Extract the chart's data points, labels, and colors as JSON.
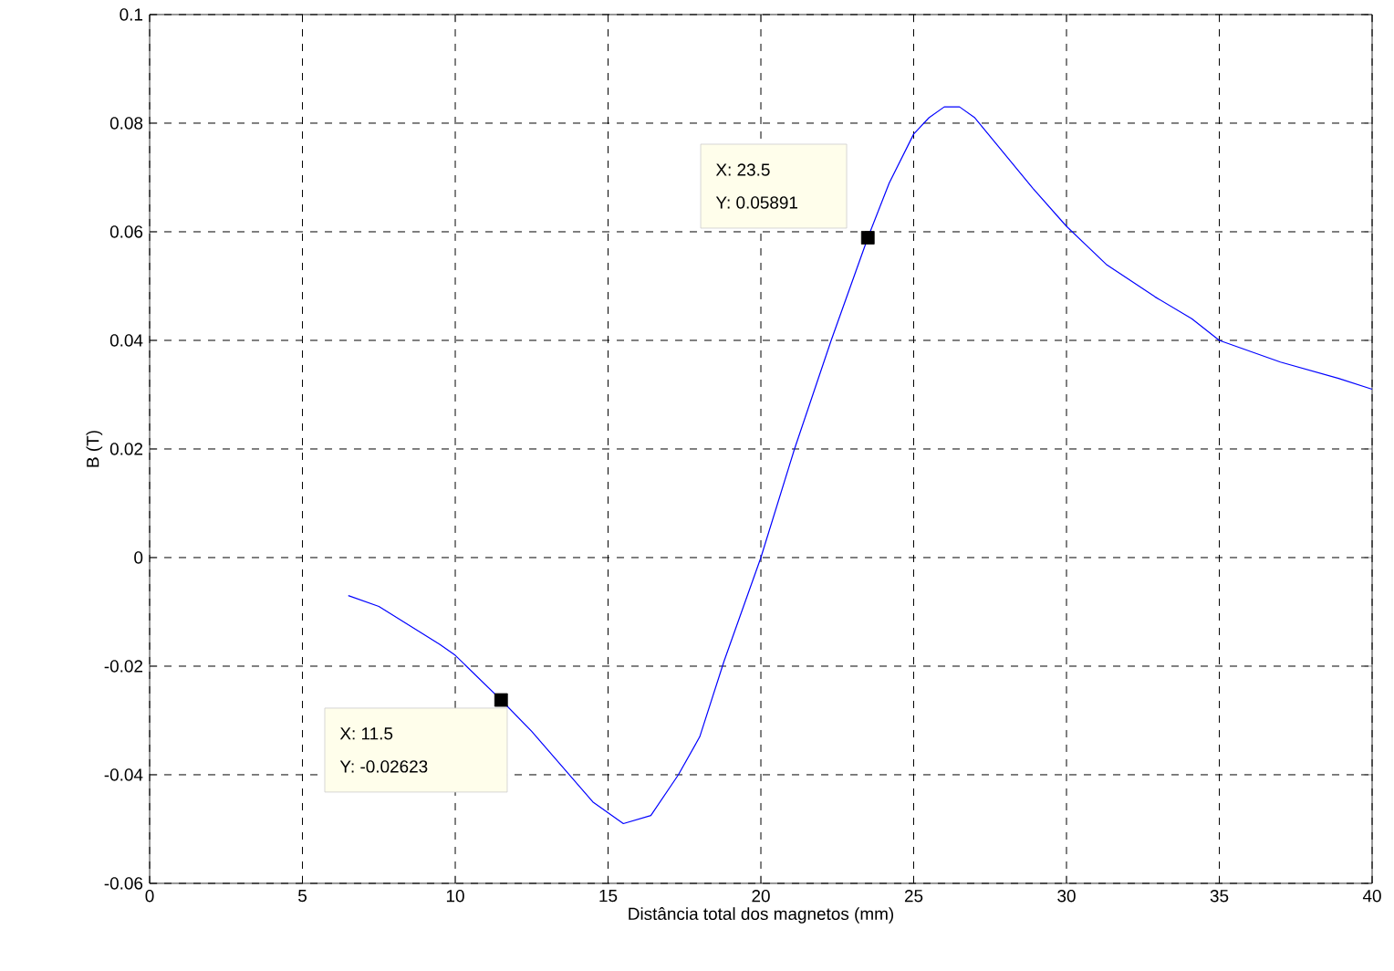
{
  "chart_data": {
    "type": "line",
    "xlabel": "Distância total dos magnetos  (mm)",
    "ylabel": "B  (T)",
    "x": [
      6.5,
      7.5,
      9.5,
      10,
      11.5,
      12.5,
      14.5,
      15.5,
      16.4,
      17.3,
      18,
      18.8,
      20,
      21.1,
      22.3,
      23.5,
      24.2,
      25,
      25.5,
      26,
      26.5,
      27,
      28.9,
      30,
      31.3,
      32.9,
      34.1,
      35,
      37,
      38.9,
      40
    ],
    "series": [
      {
        "color": "#0000ff",
        "marker": "none",
        "values": [
          -0.007,
          -0.009,
          -0.016,
          -0.018,
          -0.02623,
          -0.032,
          -0.045,
          -0.049,
          -0.0475,
          -0.04,
          -0.033,
          -0.019,
          0,
          0.02,
          0.04,
          0.05891,
          0.069,
          0.078,
          0.081,
          0.083,
          0.083,
          0.081,
          0.068,
          0.061,
          0.054,
          0.048,
          0.044,
          0.04,
          0.036,
          0.033,
          0.031
        ]
      },
      {
        "type": "scatter",
        "marker": "square",
        "color": "#000000",
        "x": [
          11.5,
          23.5
        ],
        "values": [
          -0.02623,
          0.05891
        ]
      }
    ],
    "xlim": [
      0,
      40
    ],
    "ylim": [
      -0.06,
      0.1
    ],
    "xticks": [
      0,
      5,
      10,
      15,
      20,
      25,
      30,
      35,
      40
    ],
    "yticks": [
      -0.06,
      -0.04,
      -0.02,
      0,
      0.02,
      0.04,
      0.06,
      0.08,
      0.1
    ],
    "grid": true,
    "line_style": "solid",
    "annotations": [
      "X: 11.5",
      "Y: -0.02623",
      "X: 23.5",
      "Y: 0.05891"
    ]
  }
}
